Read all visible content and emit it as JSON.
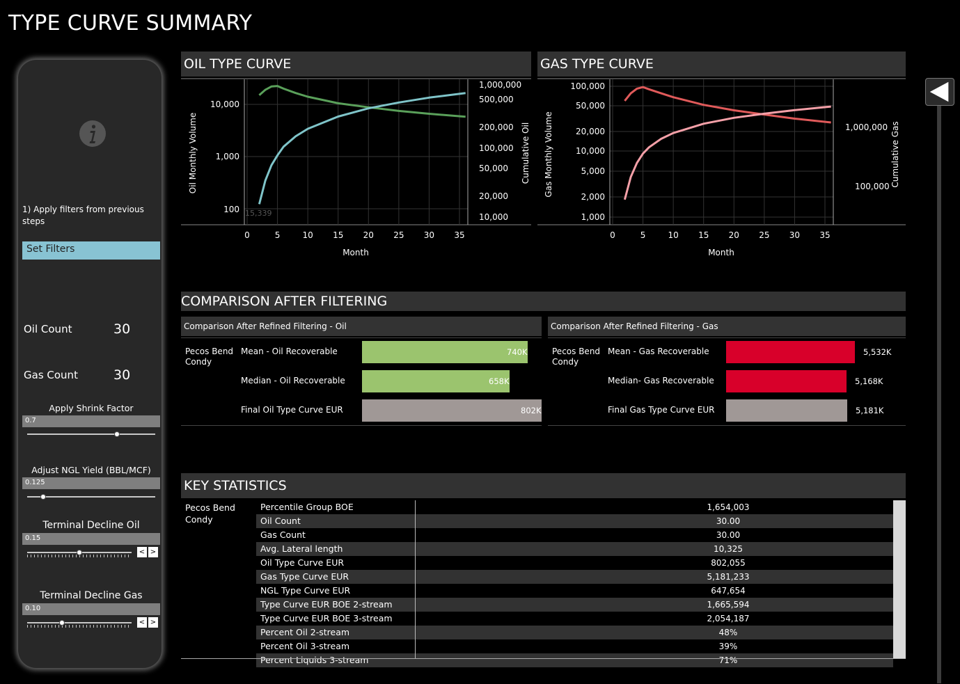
{
  "page": {
    "title": "TYPE CURVE SUMMARY"
  },
  "sidebar": {
    "instructions": "1) Apply filters from previous steps",
    "set_filters_label": "Set Filters",
    "oil_count_label": "Oil Count",
    "oil_count_value": "30",
    "gas_count_label": "Gas Count",
    "gas_count_value": "30",
    "sliders": [
      {
        "title": "Apply Shrink Factor",
        "value": "0.7",
        "fraction": 0.7
      },
      {
        "title": "Adjust NGL Yield (BBL/MCF)",
        "value": "0.125",
        "fraction": 0.125
      },
      {
        "title": "Terminal Decline Oil",
        "value": "0.15",
        "fraction": 0.5
      },
      {
        "title": "Terminal Decline Gas",
        "value": "0.10",
        "fraction": 0.33
      }
    ],
    "stepper_prev": "<",
    "stepper_next": ">"
  },
  "oil_chart": {
    "header": "OIL TYPE CURVE",
    "xlabel": "Month",
    "ylabel_left": "Oil Monthly Volume",
    "ylabel_right": "Cumulative Oil",
    "x_ticks": [
      "0",
      "5",
      "10",
      "15",
      "20",
      "25",
      "30",
      "35"
    ],
    "left_ticks": [
      "10,000",
      "1,000",
      "100"
    ],
    "right_ticks": [
      "1,000,000",
      "500,000",
      "200,000",
      "100,000",
      "50,000",
      "20,000",
      "10,000"
    ],
    "faint_label": "15,339"
  },
  "gas_chart": {
    "header": "GAS TYPE CURVE",
    "xlabel": "Month",
    "ylabel_left": "Gas Monthly Volume",
    "ylabel_right": "Cumulative Gas",
    "x_ticks": [
      "0",
      "5",
      "10",
      "15",
      "20",
      "25",
      "30",
      "35"
    ],
    "left_ticks": [
      "100,000",
      "50,000",
      "20,000",
      "10,000",
      "5,000",
      "2,000",
      "1,000"
    ],
    "right_ticks": [
      "1,000,000",
      "100,000"
    ]
  },
  "chart_data": [
    {
      "type": "line",
      "title": "OIL TYPE CURVE",
      "xlabel": "Month",
      "ylabel": "Oil Monthly Volume",
      "y2label": "Cumulative Oil",
      "xlim": [
        0,
        36
      ],
      "yscale": "log",
      "series": [
        {
          "name": "",
          "axis": "left",
          "color": "#5aa05a",
          "x": [
            2,
            3,
            4,
            5,
            6,
            8,
            10,
            15,
            20,
            25,
            30,
            36
          ],
          "y": [
            15000,
            19000,
            22000,
            22500,
            20000,
            16500,
            14000,
            10500,
            8800,
            7500,
            6600,
            5800
          ]
        },
        {
          "name": "",
          "axis": "right",
          "color": "#7fc4c9",
          "x": [
            2,
            3,
            4,
            5,
            6,
            8,
            10,
            15,
            20,
            25,
            30,
            36
          ],
          "y": [
            15339,
            35000,
            60000,
            85000,
            115000,
            165000,
            215000,
            330000,
            440000,
            540000,
            640000,
            750000
          ]
        }
      ]
    },
    {
      "type": "line",
      "title": "GAS TYPE CURVE",
      "xlabel": "Month",
      "ylabel": "Gas Monthly Volume",
      "y2label": "Cumulative Gas",
      "xlim": [
        0,
        36
      ],
      "yscale": "log",
      "series": [
        {
          "name": "",
          "axis": "left",
          "color": "#e05a5a",
          "x": [
            2,
            3,
            4,
            5,
            6,
            8,
            10,
            15,
            20,
            25,
            30,
            36
          ],
          "y": [
            60000,
            78000,
            92000,
            97000,
            90000,
            78000,
            68000,
            52000,
            43000,
            37000,
            32000,
            28000
          ]
        },
        {
          "name": "",
          "axis": "right",
          "color": "#f5a0a8",
          "x": [
            2,
            3,
            4,
            5,
            6,
            8,
            10,
            15,
            20,
            25,
            30,
            36
          ],
          "y": [
            60000,
            145000,
            250000,
            360000,
            460000,
            640000,
            800000,
            1150000,
            1450000,
            1700000,
            1950000,
            2250000
          ]
        }
      ]
    },
    {
      "type": "bar",
      "title": "Comparison After Refined Filtering - Oil",
      "categories": [
        "Mean - Oil Recoverable",
        "Median - Oil Recoverable",
        "Final Oil Type Curve EUR"
      ],
      "values": [
        740,
        658,
        802
      ],
      "value_labels": [
        "740K",
        "658K",
        "802K"
      ],
      "colors": [
        "#9bc46e",
        "#9bc46e",
        "#a09896"
      ],
      "xlim": [
        0,
        802
      ]
    },
    {
      "type": "bar",
      "title": "Comparison After Refined Filtering - Gas",
      "categories": [
        "Mean - Gas Recoverable",
        "Median- Gas Recoverable",
        "Final Gas Type Curve EUR"
      ],
      "values": [
        5532,
        5168,
        5181
      ],
      "value_labels": [
        "5,532K",
        "5,168K",
        "5,181K"
      ],
      "colors": [
        "#d8002a",
        "#d8002a",
        "#a09896"
      ],
      "xlim": [
        0,
        7700
      ]
    }
  ],
  "comparison": {
    "header": "COMPARISON AFTER FILTERING",
    "oil_title": "Comparison After Refined Filtering - Oil",
    "gas_title": "Comparison After Refined Filtering - Gas",
    "group_label": "Pecos Bend Condy"
  },
  "key_stats": {
    "header": "KEY STATISTICS",
    "group_label": "Pecos Bend Condy",
    "rows": [
      {
        "name": "Percentile Group BOE",
        "value": "1,654,003"
      },
      {
        "name": "Oil Count",
        "value": "30.00"
      },
      {
        "name": "Gas Count",
        "value": "30.00"
      },
      {
        "name": "Avg. Lateral length",
        "value": "10,325"
      },
      {
        "name": "Oil Type Curve EUR",
        "value": "802,055"
      },
      {
        "name": "Gas Type Curve EUR",
        "value": "5,181,233"
      },
      {
        "name": "NGL Type Curve EUR",
        "value": "647,654"
      },
      {
        "name": "Type Curve EUR BOE 2-stream",
        "value": "1,665,594"
      },
      {
        "name": "Type Curve EUR BOE 3-stream",
        "value": "2,054,187"
      },
      {
        "name": "Percent Oil 2-stream",
        "value": "48%"
      },
      {
        "name": "Percent Oil 3-stream",
        "value": "39%"
      },
      {
        "name": "Percent Liquids 3-stream",
        "value": "71%"
      }
    ]
  }
}
